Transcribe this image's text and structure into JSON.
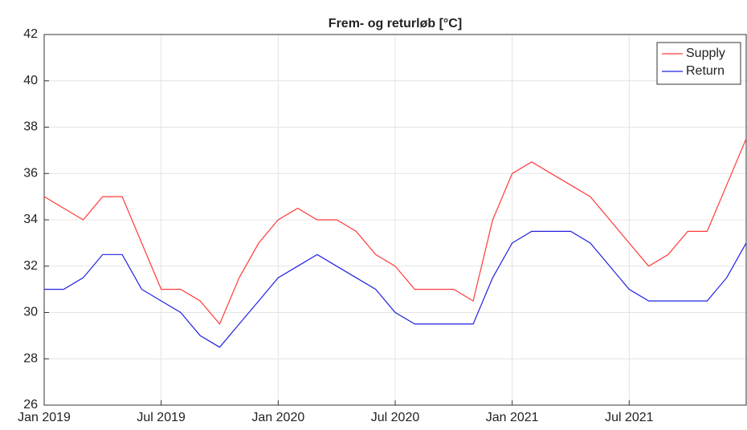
{
  "chart_data": {
    "type": "line",
    "title": "Frem- og returløb [°C]",
    "x": [
      "2019-01",
      "2019-02",
      "2019-03",
      "2019-04",
      "2019-05",
      "2019-06",
      "2019-07",
      "2019-08",
      "2019-09",
      "2019-10",
      "2019-11",
      "2019-12",
      "2020-01",
      "2020-02",
      "2020-03",
      "2020-04",
      "2020-05",
      "2020-06",
      "2020-07",
      "2020-08",
      "2020-09",
      "2020-10",
      "2020-11",
      "2020-12",
      "2021-01",
      "2021-02",
      "2021-03",
      "2021-04",
      "2021-05",
      "2021-06",
      "2021-07",
      "2021-08",
      "2021-09",
      "2021-10",
      "2021-11",
      "2021-12",
      "2022-01"
    ],
    "series": [
      {
        "name": "Supply",
        "color": "#ff3a3a",
        "values": [
          35,
          34.5,
          34,
          35,
          35,
          33,
          31,
          31,
          30.5,
          29.5,
          31.5,
          33,
          34,
          34.5,
          34,
          34,
          33.5,
          32.5,
          32,
          31,
          31,
          31,
          30.5,
          34,
          36,
          36.5,
          36,
          35.5,
          35,
          34,
          33,
          32,
          32.5,
          33.5,
          33.5,
          35.5,
          37.5
        ]
      },
      {
        "name": "Return",
        "color": "#2020e0",
        "values": [
          31,
          31,
          31.5,
          32.5,
          32.5,
          31,
          30.5,
          30,
          29,
          28.5,
          29.5,
          30.5,
          31.5,
          32,
          32.5,
          32,
          31.5,
          31,
          30,
          29.5,
          29.5,
          29.5,
          29.5,
          31.5,
          33,
          33.5,
          33.5,
          33.5,
          33,
          32,
          31,
          30.5,
          30.5,
          30.5,
          30.5,
          31.5,
          33
        ]
      }
    ],
    "xlim": [
      "2019-01",
      "2022-01"
    ],
    "xticks": [
      {
        "value": "2019-01",
        "label": "Jan 2019"
      },
      {
        "value": "2019-07",
        "label": "Jul 2019"
      },
      {
        "value": "2020-01",
        "label": "Jan 2020"
      },
      {
        "value": "2020-07",
        "label": "Jul 2020"
      },
      {
        "value": "2021-01",
        "label": "Jan 2021"
      },
      {
        "value": "2021-07",
        "label": "Jul 2021"
      }
    ],
    "ylim": [
      26,
      42
    ],
    "yticks": [
      26,
      28,
      30,
      32,
      34,
      36,
      38,
      40,
      42
    ],
    "grid": true,
    "legend": "upper right"
  }
}
